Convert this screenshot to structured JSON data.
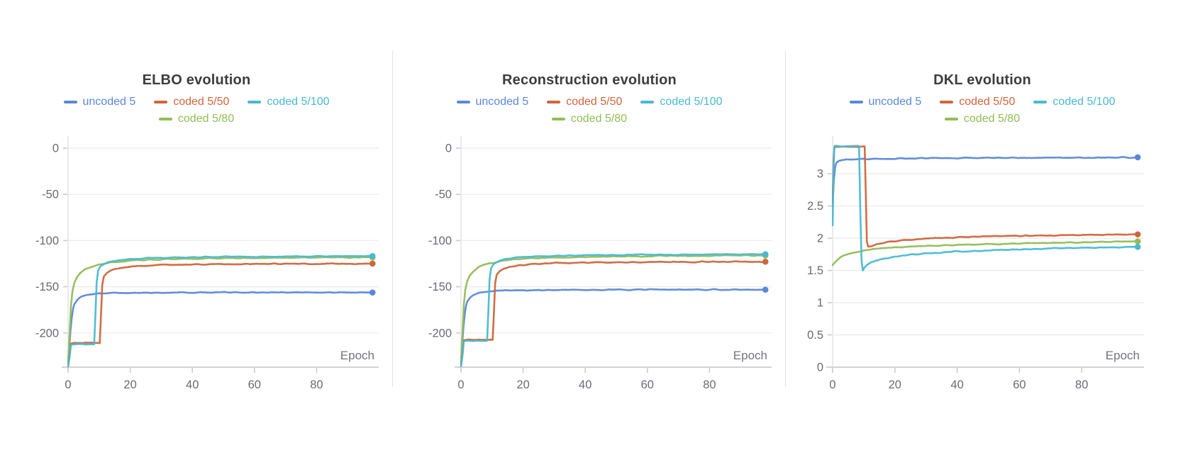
{
  "figure": {
    "background": "#ffffff",
    "grid_color": "#ebebee",
    "axis_color": "#d2d2d7",
    "tick_color": "#c9c9cf",
    "tick_label_color": "#6a6a73",
    "axis_label_color": "#74747c",
    "title_color": "#3d3d3d"
  },
  "chart_data": [
    {
      "type": "line",
      "title": "ELBO evolution",
      "xlabel": "Epoch",
      "x_ticks": [
        0,
        20,
        40,
        60,
        80
      ],
      "xlim": [
        0,
        100
      ],
      "y_ticks": [
        0,
        -50,
        -100,
        -150,
        -200
      ],
      "y_tick_labels": [
        "0",
        "-50",
        "-100",
        "-150",
        "-200"
      ],
      "ylim": [
        -237,
        10
      ],
      "grid": true,
      "legend_position": "top",
      "series": [
        {
          "name": "uncoded 5",
          "color": "#5b87d8",
          "end_value": -156,
          "points": [
            [
              0,
              -236
            ],
            [
              0.4,
              -215
            ],
            [
              0.8,
              -196
            ],
            [
              1.2,
              -183
            ],
            [
              1.6,
              -174
            ],
            [
              2,
              -169
            ],
            [
              3,
              -164
            ],
            [
              4,
              -161.5
            ],
            [
              6,
              -159
            ],
            [
              8,
              -157.8
            ],
            [
              12,
              -157
            ],
            [
              20,
              -156.6
            ],
            [
              40,
              -156.2
            ],
            [
              70,
              -156
            ],
            [
              98,
              -156.2
            ]
          ]
        },
        {
          "name": "coded 5/50",
          "color": "#d0653c",
          "end_value": -125,
          "points": [
            [
              0,
              -236
            ],
            [
              0.5,
              -224
            ],
            [
              0.9,
              -211.5
            ],
            [
              1.5,
              -210.8
            ],
            [
              5,
              -210.8
            ],
            [
              10.2,
              -210.8
            ],
            [
              10.6,
              -180
            ],
            [
              11,
              -148
            ],
            [
              11.5,
              -139
            ],
            [
              12.5,
              -135
            ],
            [
              14,
              -132.2
            ],
            [
              16,
              -130.3
            ],
            [
              19,
              -128.7
            ],
            [
              23,
              -127.5
            ],
            [
              30,
              -126.4
            ],
            [
              40,
              -125.8
            ],
            [
              60,
              -125.3
            ],
            [
              98,
              -124.9
            ]
          ]
        },
        {
          "name": "coded 5/100",
          "color": "#4ab9d0",
          "end_value": -116.8,
          "points": [
            [
              0,
              -236
            ],
            [
              0.5,
              -226
            ],
            [
              0.9,
              -213
            ],
            [
              1.5,
              -212.2
            ],
            [
              5,
              -212.2
            ],
            [
              8.4,
              -212.2
            ],
            [
              8.8,
              -180
            ],
            [
              9.2,
              -145
            ],
            [
              9.7,
              -132
            ],
            [
              10.5,
              -127.5
            ],
            [
              12,
              -124.5
            ],
            [
              14,
              -122.6
            ],
            [
              17,
              -121
            ],
            [
              21,
              -119.8
            ],
            [
              27,
              -118.9
            ],
            [
              35,
              -118.2
            ],
            [
              50,
              -117.6
            ],
            [
              75,
              -117.1
            ],
            [
              98,
              -116.8
            ]
          ]
        },
        {
          "name": "coded 5/80",
          "color": "#92bd57",
          "end_value": -118.2,
          "points": [
            [
              0,
              -233
            ],
            [
              0.5,
              -200
            ],
            [
              0.9,
              -172
            ],
            [
              1.4,
              -155
            ],
            [
              2,
              -146
            ],
            [
              2.8,
              -140
            ],
            [
              4,
              -134.8
            ],
            [
              5.5,
              -131
            ],
            [
              7.5,
              -128.2
            ],
            [
              10,
              -126
            ],
            [
              13,
              -124.1
            ],
            [
              17,
              -122.6
            ],
            [
              22,
              -121.4
            ],
            [
              28,
              -120.6
            ],
            [
              36,
              -119.9
            ],
            [
              48,
              -119.2
            ],
            [
              65,
              -118.7
            ],
            [
              82,
              -118.3
            ],
            [
              98,
              -118.2
            ]
          ]
        }
      ]
    },
    {
      "type": "line",
      "title": "Reconstruction evolution",
      "xlabel": "Epoch",
      "x_ticks": [
        0,
        20,
        40,
        60,
        80
      ],
      "xlim": [
        0,
        100
      ],
      "y_ticks": [
        0,
        -50,
        -100,
        -150,
        -200
      ],
      "y_tick_labels": [
        "0",
        "-50",
        "-100",
        "-150",
        "-200"
      ],
      "ylim": [
        -237,
        10
      ],
      "grid": true,
      "legend_position": "top",
      "series": [
        {
          "name": "uncoded 5",
          "color": "#5b87d8",
          "end_value": -153,
          "points": [
            [
              0,
              -234
            ],
            [
              0.4,
              -212
            ],
            [
              0.8,
              -193
            ],
            [
              1.2,
              -180
            ],
            [
              1.6,
              -171
            ],
            [
              2,
              -166
            ],
            [
              3,
              -161.5
            ],
            [
              4,
              -159
            ],
            [
              6,
              -156.5
            ],
            [
              8,
              -155.2
            ],
            [
              12,
              -154.2
            ],
            [
              20,
              -153.8
            ],
            [
              40,
              -153.3
            ],
            [
              70,
              -153
            ],
            [
              98,
              -153.2
            ]
          ]
        },
        {
          "name": "coded 5/50",
          "color": "#d0653c",
          "end_value": -123,
          "points": [
            [
              0,
              -236
            ],
            [
              0.5,
              -222
            ],
            [
              0.9,
              -208
            ],
            [
              1.5,
              -207.3
            ],
            [
              5,
              -207.3
            ],
            [
              10.2,
              -207.3
            ],
            [
              10.6,
              -178
            ],
            [
              11,
              -146
            ],
            [
              11.5,
              -137
            ],
            [
              12.5,
              -133
            ],
            [
              14,
              -130.2
            ],
            [
              16,
              -128.3
            ],
            [
              19,
              -126.7
            ],
            [
              23,
              -125.5
            ],
            [
              30,
              -124.4
            ],
            [
              40,
              -123.8
            ],
            [
              60,
              -123.3
            ],
            [
              98,
              -122.9
            ]
          ]
        },
        {
          "name": "coded 5/100",
          "color": "#4ab9d0",
          "end_value": -114.8,
          "points": [
            [
              0,
              -236
            ],
            [
              0.5,
              -224
            ],
            [
              0.9,
              -209
            ],
            [
              1.5,
              -208.5
            ],
            [
              5,
              -208.5
            ],
            [
              8.4,
              -208.5
            ],
            [
              8.8,
              -178
            ],
            [
              9.2,
              -142
            ],
            [
              9.7,
              -130
            ],
            [
              10.5,
              -125.5
            ],
            [
              12,
              -122.5
            ],
            [
              14,
              -120.6
            ],
            [
              17,
              -119
            ],
            [
              21,
              -117.8
            ],
            [
              27,
              -116.9
            ],
            [
              35,
              -116.2
            ],
            [
              50,
              -115.6
            ],
            [
              75,
              -115.1
            ],
            [
              98,
              -114.8
            ]
          ]
        },
        {
          "name": "coded 5/80",
          "color": "#92bd57",
          "end_value": -116.2,
          "points": [
            [
              0,
              -231
            ],
            [
              0.5,
              -198
            ],
            [
              0.9,
              -170
            ],
            [
              1.4,
              -153
            ],
            [
              2,
              -144
            ],
            [
              2.8,
              -138
            ],
            [
              4,
              -132.8
            ],
            [
              5.5,
              -129
            ],
            [
              7.5,
              -126.2
            ],
            [
              10,
              -124
            ],
            [
              13,
              -122.1
            ],
            [
              17,
              -120.6
            ],
            [
              22,
              -119.4
            ],
            [
              28,
              -118.6
            ],
            [
              36,
              -117.9
            ],
            [
              48,
              -117.2
            ],
            [
              65,
              -116.7
            ],
            [
              82,
              -116.3
            ],
            [
              98,
              -116.2
            ]
          ]
        }
      ]
    },
    {
      "type": "line",
      "title": "DKL evolution",
      "xlabel": "Epoch",
      "x_ticks": [
        0,
        20,
        40,
        60,
        80
      ],
      "xlim": [
        0,
        100
      ],
      "y_ticks": [
        0,
        0.5,
        1,
        1.5,
        2,
        2.5,
        3
      ],
      "y_tick_labels": [
        "0",
        "0.5",
        "1",
        "1.5",
        "2",
        "2.5",
        "3"
      ],
      "ylim": [
        0,
        3.54
      ],
      "grid": true,
      "legend_position": "top",
      "series": [
        {
          "name": "uncoded 5",
          "color": "#5b87d8",
          "end_value": 3.26,
          "points": [
            [
              0,
              2.5
            ],
            [
              0.4,
              2.9
            ],
            [
              0.8,
              3.1
            ],
            [
              1.2,
              3.17
            ],
            [
              2,
              3.2
            ],
            [
              3,
              3.215
            ],
            [
              5,
              3.225
            ],
            [
              10,
              3.23
            ],
            [
              20,
              3.235
            ],
            [
              35,
              3.24
            ],
            [
              50,
              3.245
            ],
            [
              70,
              3.25
            ],
            [
              85,
              3.25
            ],
            [
              98,
              3.255
            ]
          ]
        },
        {
          "name": "coded 5/50",
          "color": "#d0653c",
          "end_value": 2.06,
          "points": [
            [
              0,
              2.6
            ],
            [
              0.3,
              3.2
            ],
            [
              0.6,
              3.42
            ],
            [
              2,
              3.42
            ],
            [
              10.3,
              3.42
            ],
            [
              10.7,
              2.6
            ],
            [
              11,
              1.95
            ],
            [
              11.4,
              1.87
            ],
            [
              12.5,
              1.875
            ],
            [
              14,
              1.9
            ],
            [
              16,
              1.925
            ],
            [
              19,
              1.95
            ],
            [
              23,
              1.97
            ],
            [
              28,
              1.99
            ],
            [
              35,
              2.005
            ],
            [
              45,
              2.02
            ],
            [
              60,
              2.035
            ],
            [
              80,
              2.05
            ],
            [
              98,
              2.06
            ]
          ]
        },
        {
          "name": "coded 5/100",
          "color": "#4ab9d0",
          "end_value": 1.87,
          "points": [
            [
              0,
              2.2
            ],
            [
              0.3,
              3.1
            ],
            [
              0.6,
              3.43
            ],
            [
              2,
              3.43
            ],
            [
              8.5,
              3.43
            ],
            [
              8.9,
              2.4
            ],
            [
              9.3,
              1.65
            ],
            [
              9.7,
              1.5
            ],
            [
              10.2,
              1.54
            ],
            [
              11,
              1.585
            ],
            [
              12.5,
              1.625
            ],
            [
              14.5,
              1.66
            ],
            [
              17,
              1.69
            ],
            [
              20,
              1.715
            ],
            [
              24,
              1.74
            ],
            [
              29,
              1.762
            ],
            [
              35,
              1.78
            ],
            [
              43,
              1.8
            ],
            [
              55,
              1.82
            ],
            [
              70,
              1.84
            ],
            [
              85,
              1.855
            ],
            [
              98,
              1.865
            ]
          ]
        },
        {
          "name": "coded 5/80",
          "color": "#92bd57",
          "end_value": 1.95,
          "points": [
            [
              0,
              1.58
            ],
            [
              0.8,
              1.62
            ],
            [
              1.6,
              1.665
            ],
            [
              2.5,
              1.7
            ],
            [
              3.5,
              1.73
            ],
            [
              5,
              1.758
            ],
            [
              6.5,
              1.778
            ],
            [
              8,
              1.793
            ],
            [
              10,
              1.81
            ],
            [
              12.5,
              1.826
            ],
            [
              15,
              1.838
            ],
            [
              18,
              1.85
            ],
            [
              22,
              1.862
            ],
            [
              27,
              1.873
            ],
            [
              33,
              1.884
            ],
            [
              40,
              1.895
            ],
            [
              50,
              1.908
            ],
            [
              62,
              1.92
            ],
            [
              75,
              1.932
            ],
            [
              88,
              1.942
            ],
            [
              98,
              1.95
            ]
          ]
        }
      ]
    }
  ]
}
